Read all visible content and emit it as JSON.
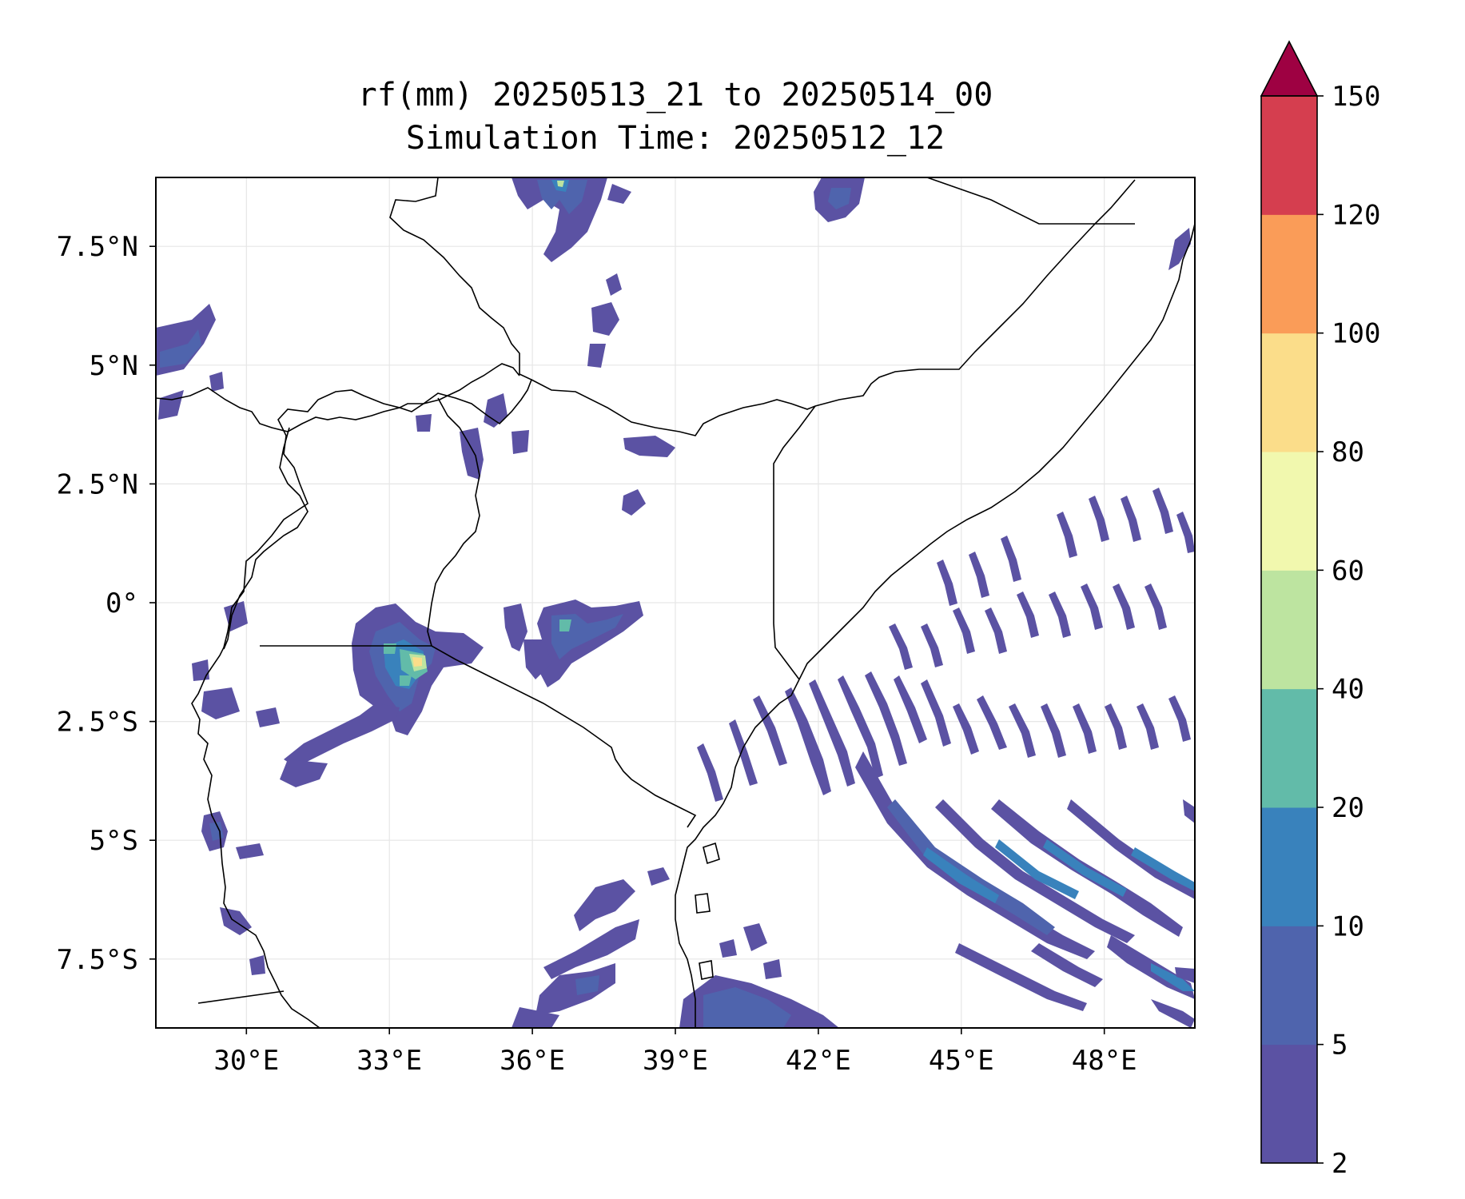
{
  "title": {
    "line1": "rf(mm) 20250513_21 to 20250514_00",
    "line2": "Simulation Time: 20250512_12"
  },
  "map": {
    "lon_range": [
      28.1,
      49.9
    ],
    "lat_range": [
      -8.95,
      8.95
    ],
    "x_ticks": [
      {
        "value": 30,
        "label": "30°E"
      },
      {
        "value": 33,
        "label": "33°E"
      },
      {
        "value": 36,
        "label": "36°E"
      },
      {
        "value": 39,
        "label": "39°E"
      },
      {
        "value": 42,
        "label": "42°E"
      },
      {
        "value": 45,
        "label": "45°E"
      },
      {
        "value": 48,
        "label": "48°E"
      }
    ],
    "y_ticks": [
      {
        "value": 7.5,
        "label": "7.5°N"
      },
      {
        "value": 5,
        "label": "5°N"
      },
      {
        "value": 2.5,
        "label": "2.5°N"
      },
      {
        "value": 0,
        "label": "0°"
      },
      {
        "value": -2.5,
        "label": "2.5°S"
      },
      {
        "value": -5,
        "label": "5°S"
      },
      {
        "value": -7.5,
        "label": "7.5°S"
      }
    ],
    "grid": true
  },
  "colorbar": {
    "levels": [
      2,
      5,
      10,
      20,
      40,
      60,
      80,
      100,
      120,
      150
    ],
    "colors": [
      "#5b52a3",
      "#4f64ad",
      "#3982bc",
      "#62bba9",
      "#bde4a0",
      "#f1f8ae",
      "#fbdd8a",
      "#fa9c58",
      "#d53e4f"
    ],
    "extend_color": "#9e0142",
    "tick_labels": [
      "2",
      "5",
      "10",
      "20",
      "40",
      "60",
      "80",
      "100",
      "120",
      "150"
    ]
  },
  "chart_data": {
    "type": "heatmap",
    "title": "rf(mm) 20250513_21 to 20250514_00\nSimulation Time: 20250512_12",
    "xlabel": "",
    "ylabel": "",
    "xlim": [
      28.1,
      49.9
    ],
    "ylim": [
      -8.95,
      8.95
    ],
    "colorbar_levels": [
      2,
      5,
      10,
      20,
      40,
      60,
      80,
      100,
      120,
      150
    ],
    "colorbar_extend": "max",
    "cells": [
      {
        "lon": 36.5,
        "lat": 8.6,
        "value": 20
      },
      {
        "lon": 36.3,
        "lat": 7.9,
        "value": 8
      },
      {
        "lon": 42.4,
        "lat": 8.5,
        "value": 8
      },
      {
        "lon": 37.5,
        "lat": 6.0,
        "value": 4
      },
      {
        "lon": 28.8,
        "lat": 5.2,
        "value": 6
      },
      {
        "lon": 37.1,
        "lat": 3.5,
        "value": 5
      },
      {
        "lon": 38.0,
        "lat": 2.1,
        "value": 6
      },
      {
        "lon": 33.2,
        "lat": -1.0,
        "value": 40
      },
      {
        "lon": 33.6,
        "lat": -1.2,
        "value": 100
      },
      {
        "lon": 32.9,
        "lat": -1.5,
        "value": 25
      },
      {
        "lon": 33.0,
        "lat": -2.0,
        "value": 12
      },
      {
        "lon": 37.5,
        "lat": -0.5,
        "value": 30
      },
      {
        "lon": 36.3,
        "lat": -1.0,
        "value": 8
      },
      {
        "lon": 32.0,
        "lat": -3.1,
        "value": 5
      },
      {
        "lon": 29.4,
        "lat": -4.5,
        "value": 6
      },
      {
        "lon": 37.0,
        "lat": -8.1,
        "value": 10
      },
      {
        "lon": 40.3,
        "lat": -8.2,
        "value": 12
      },
      {
        "lon": 42.9,
        "lat": -4.5,
        "value": 15
      },
      {
        "lon": 44.8,
        "lat": -5.3,
        "value": 20
      },
      {
        "lon": 46.3,
        "lat": -6.7,
        "value": 15
      },
      {
        "lon": 47.9,
        "lat": -7.8,
        "value": 20
      },
      {
        "lon": 45.5,
        "lat": -1.0,
        "value": 5
      },
      {
        "lon": 47.5,
        "lat": 0.0,
        "value": 6
      },
      {
        "lon": 49.6,
        "lat": 7.2,
        "value": 6
      }
    ]
  }
}
